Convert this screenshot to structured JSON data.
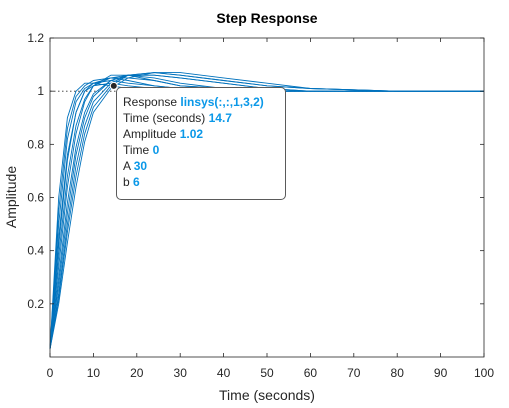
{
  "chart_data": {
    "type": "line",
    "title": "Step Response",
    "xlabel": "Time (seconds)",
    "ylabel": "Amplitude",
    "xlim": [
      0,
      100
    ],
    "ylim": [
      0,
      1.2
    ],
    "xticks": [
      "0",
      "10",
      "20",
      "30",
      "40",
      "50",
      "60",
      "70",
      "80",
      "90",
      "100"
    ],
    "yticks": [
      "0.2",
      "0.4",
      "0.6",
      "0.8",
      "1",
      "1.2"
    ],
    "grid": false,
    "reference_line": {
      "y": 1,
      "style": "dotted"
    },
    "line_color": "#0072bd",
    "series": [
      {
        "x": [
          0,
          2,
          4,
          6,
          8,
          10,
          14,
          18,
          24,
          30,
          40,
          50,
          60,
          80,
          100
        ],
        "values": [
          0.03,
          0.55,
          0.86,
          0.98,
          1.02,
          1.04,
          1.05,
          1.04,
          1.02,
          1.01,
          1.0,
          1.0,
          1.0,
          1.0,
          1.0
        ]
      },
      {
        "x": [
          0,
          2,
          4,
          6,
          8,
          10,
          14,
          18,
          24,
          30,
          40,
          50,
          60,
          80,
          100
        ],
        "values": [
          0.03,
          0.45,
          0.76,
          0.92,
          1.0,
          1.03,
          1.05,
          1.05,
          1.04,
          1.02,
          1.01,
          1.0,
          1.0,
          1.0,
          1.0
        ]
      },
      {
        "x": [
          0,
          2,
          4,
          6,
          8,
          10,
          14,
          18,
          24,
          30,
          40,
          50,
          60,
          80,
          100
        ],
        "values": [
          0.03,
          0.38,
          0.68,
          0.87,
          0.97,
          1.02,
          1.05,
          1.06,
          1.05,
          1.03,
          1.01,
          1.0,
          1.0,
          1.0,
          1.0
        ]
      },
      {
        "x": [
          0,
          2,
          4,
          6,
          8,
          10,
          14,
          18,
          24,
          30,
          40,
          50,
          60,
          80,
          100
        ],
        "values": [
          0.03,
          0.3,
          0.58,
          0.79,
          0.92,
          0.99,
          1.04,
          1.06,
          1.06,
          1.05,
          1.03,
          1.01,
          1.0,
          1.0,
          1.0
        ]
      },
      {
        "x": [
          0,
          2,
          4,
          6,
          8,
          10,
          14,
          18,
          24,
          30,
          40,
          50,
          60,
          80,
          100
        ],
        "values": [
          0.03,
          0.24,
          0.5,
          0.72,
          0.87,
          0.96,
          1.03,
          1.06,
          1.07,
          1.06,
          1.04,
          1.02,
          1.01,
          1.0,
          1.0
        ]
      },
      {
        "x": [
          0,
          2,
          4,
          6,
          8,
          10,
          14,
          18,
          24,
          30,
          40,
          50,
          60,
          80,
          100
        ],
        "values": [
          0.03,
          0.2,
          0.43,
          0.64,
          0.81,
          0.92,
          1.01,
          1.05,
          1.07,
          1.07,
          1.05,
          1.03,
          1.01,
          1.0,
          1.0
        ]
      },
      {
        "x": [
          0,
          2,
          4,
          6,
          8,
          10,
          14,
          18,
          24,
          30,
          40,
          50,
          60,
          80,
          100
        ],
        "values": [
          0.03,
          0.42,
          0.74,
          0.92,
          1.0,
          1.02,
          1.03,
          1.02,
          1.01,
          1.0,
          1.0,
          1.0,
          1.0,
          1.0,
          1.0
        ]
      },
      {
        "x": [
          0,
          2,
          4,
          6,
          8,
          10,
          14,
          18,
          24,
          30,
          40,
          50,
          60,
          80,
          100
        ],
        "values": [
          0.03,
          0.6,
          0.9,
          1.0,
          1.03,
          1.03,
          1.02,
          1.01,
          1.0,
          1.0,
          1.0,
          1.0,
          1.0,
          1.0,
          1.0
        ]
      },
      {
        "x": [
          0,
          2,
          4,
          6,
          8,
          10,
          14,
          18,
          24,
          30,
          40,
          50,
          60,
          80,
          100
        ],
        "values": [
          0.03,
          0.34,
          0.64,
          0.84,
          0.96,
          1.02,
          1.06,
          1.06,
          1.04,
          1.02,
          1.01,
          1.0,
          1.0,
          1.0,
          1.0
        ]
      },
      {
        "x": [
          0,
          2,
          4,
          6,
          8,
          10,
          14,
          18,
          24,
          30,
          40,
          50,
          60,
          80,
          100
        ],
        "values": [
          0.03,
          0.27,
          0.54,
          0.76,
          0.9,
          0.98,
          1.04,
          1.06,
          1.06,
          1.05,
          1.03,
          1.01,
          1.0,
          1.0,
          1.0
        ]
      },
      {
        "x": [
          0,
          2,
          4,
          6,
          8,
          10,
          14,
          18,
          24,
          30,
          40,
          50,
          60,
          80,
          100
        ],
        "values": [
          0.03,
          0.5,
          0.82,
          0.96,
          1.01,
          1.03,
          1.04,
          1.03,
          1.02,
          1.01,
          1.0,
          1.0,
          1.0,
          1.0,
          1.0
        ]
      },
      {
        "x": [
          0,
          2,
          4,
          6,
          8,
          10,
          14,
          18,
          24,
          30,
          40,
          50,
          60,
          80,
          100
        ],
        "values": [
          0.03,
          0.22,
          0.47,
          0.68,
          0.84,
          0.94,
          1.02,
          1.06,
          1.07,
          1.06,
          1.04,
          1.02,
          1.01,
          1.0,
          1.0
        ]
      }
    ],
    "datatip": {
      "x": 14.7,
      "y": 1.02,
      "rows": [
        {
          "label": "Response",
          "value": "linsys(:,:,1,3,2)"
        },
        {
          "label": "Time (seconds)",
          "value": "14.7"
        },
        {
          "label": "Amplitude",
          "value": "1.02"
        },
        {
          "label": "Time",
          "value": "0"
        },
        {
          "label": "A",
          "value": "30"
        },
        {
          "label": "b",
          "value": "6"
        }
      ]
    }
  }
}
